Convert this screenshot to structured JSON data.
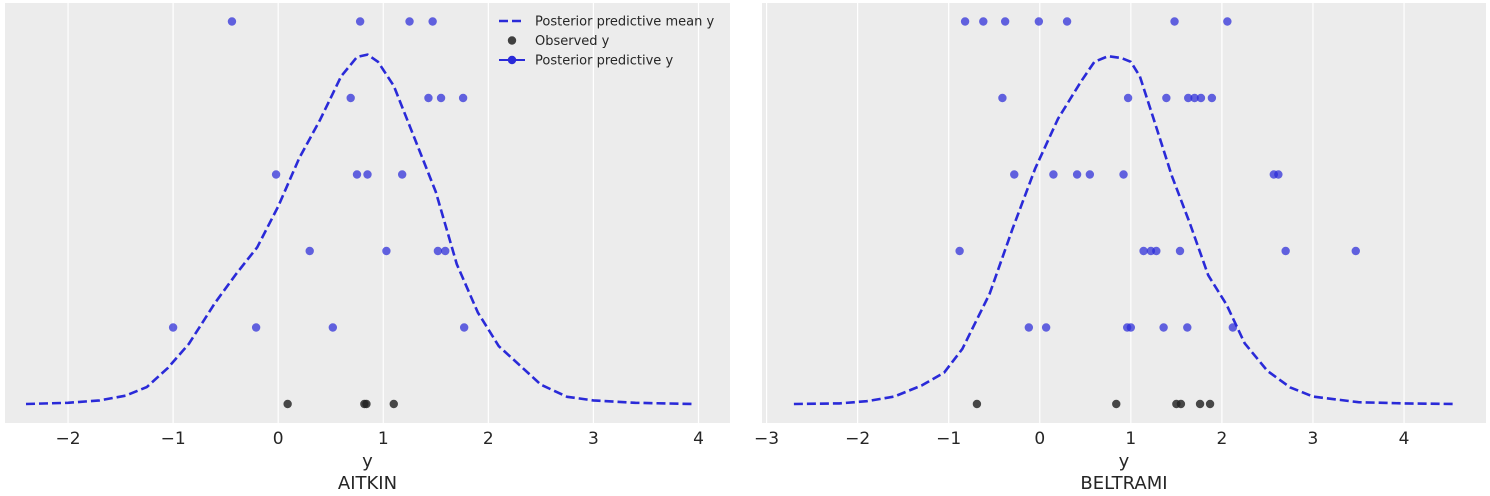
{
  "chart_data": [
    {
      "type": "scatter",
      "title": "",
      "xlabel": "y",
      "subtitle": "AITKIN",
      "xlim": [
        -2.6,
        4.3
      ],
      "xticks": [
        -2,
        -1,
        0,
        1,
        2,
        3,
        4
      ],
      "xtick_labels": [
        "−2",
        "−1",
        "0",
        "1",
        "2",
        "3",
        "4"
      ],
      "grid": true,
      "legend_position": "top-right",
      "legend": [
        {
          "label": "Posterior predictive mean y",
          "style": "dashed-line",
          "color": "#2a2ad8"
        },
        {
          "label": "Observed y",
          "style": "marker",
          "color": "#222222"
        },
        {
          "label": "Posterior predictive y",
          "style": "line-marker",
          "color": "#2a2ad8"
        }
      ],
      "series": [
        {
          "name": "Posterior predictive mean y",
          "kind": "density-line",
          "x": [
            -2.4,
            -2.0,
            -1.7,
            -1.45,
            -1.25,
            -1.05,
            -0.85,
            -0.6,
            -0.4,
            -0.2,
            0.0,
            0.2,
            0.4,
            0.6,
            0.75,
            0.85,
            0.95,
            1.1,
            1.3,
            1.5,
            1.7,
            1.9,
            2.1,
            2.3,
            2.5,
            2.75,
            3.0,
            3.4,
            3.95
          ],
          "density": [
            0.0,
            0.005,
            0.015,
            0.035,
            0.07,
            0.15,
            0.25,
            0.42,
            0.54,
            0.65,
            0.82,
            1.02,
            1.18,
            1.36,
            1.44,
            1.45,
            1.42,
            1.32,
            1.1,
            0.88,
            0.58,
            0.38,
            0.24,
            0.16,
            0.08,
            0.03,
            0.015,
            0.005,
            0.0
          ]
        },
        {
          "name": "Observed y",
          "kind": "points",
          "x": [
            0.09,
            0.82,
            0.84,
            1.1
          ],
          "row": [
            0,
            0,
            0,
            0
          ]
        },
        {
          "name": "Posterior predictive y",
          "kind": "dot-rows",
          "rows": [
            [
              -1.0,
              -0.21,
              0.52,
              1.77
            ],
            [
              0.3,
              1.03,
              1.52,
              1.59
            ],
            [
              -0.02,
              0.75,
              0.85,
              1.18
            ],
            [
              0.69,
              1.43,
              1.55,
              1.76
            ],
            [
              -0.44,
              0.78,
              1.25,
              1.47
            ]
          ]
        }
      ]
    },
    {
      "type": "scatter",
      "title": "",
      "xlabel": "y",
      "subtitle": "BELTRAMI",
      "xlim": [
        -3.05,
        4.9
      ],
      "xticks": [
        -3,
        -2,
        -1,
        0,
        1,
        2,
        3,
        4
      ],
      "xtick_labels": [
        "−3",
        "−2",
        "−1",
        "0",
        "1",
        "2",
        "3",
        "4"
      ],
      "grid": true,
      "series": [
        {
          "name": "Posterior predictive mean y",
          "kind": "density-line",
          "x": [
            -2.7,
            -2.2,
            -1.9,
            -1.6,
            -1.3,
            -1.05,
            -0.85,
            -0.55,
            -0.3,
            -0.05,
            0.2,
            0.45,
            0.6,
            0.75,
            0.9,
            1.0,
            1.1,
            1.25,
            1.45,
            1.65,
            1.85,
            2.05,
            2.25,
            2.5,
            2.75,
            3.0,
            3.5,
            4.0,
            4.55
          ],
          "density": [
            0.0,
            0.003,
            0.015,
            0.04,
            0.1,
            0.17,
            0.3,
            0.6,
            0.95,
            1.28,
            1.55,
            1.75,
            1.86,
            1.89,
            1.88,
            1.86,
            1.78,
            1.55,
            1.24,
            0.98,
            0.7,
            0.54,
            0.33,
            0.18,
            0.09,
            0.04,
            0.01,
            0.003,
            0.0
          ]
        },
        {
          "name": "Observed y",
          "kind": "points",
          "x": [
            -0.69,
            0.84,
            1.5,
            1.55,
            1.76,
            1.87
          ],
          "row": [
            0,
            0,
            0,
            0,
            0,
            0
          ]
        },
        {
          "name": "Posterior predictive y",
          "kind": "dot-rows",
          "rows": [
            [
              -0.12,
              0.07,
              0.96,
              1.0,
              1.36,
              1.62,
              2.12
            ],
            [
              -0.88,
              1.14,
              1.22,
              1.28,
              1.54,
              2.7,
              3.47
            ],
            [
              -0.28,
              0.15,
              0.41,
              0.55,
              0.92,
              2.57,
              2.62
            ],
            [
              -0.41,
              0.97,
              1.39,
              1.63,
              1.7,
              1.77,
              1.89
            ],
            [
              -0.82,
              -0.62,
              -0.38,
              -0.01,
              0.3,
              1.48,
              2.06
            ]
          ]
        }
      ]
    }
  ]
}
